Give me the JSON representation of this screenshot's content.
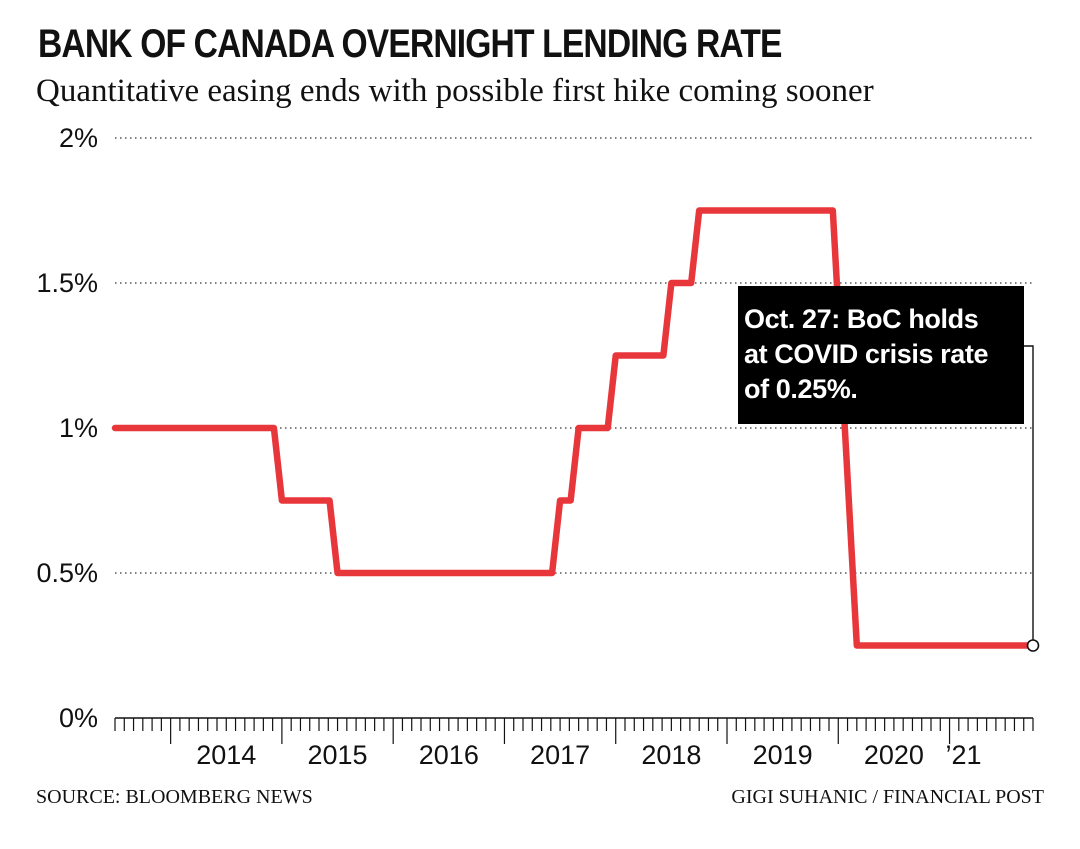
{
  "title": "BANK OF CANADA OVERNIGHT LENDING RATE",
  "subtitle": "Quantitative easing ends with possible first hike coming sooner",
  "annotation": {
    "lines": [
      "Oct. 27: BoC holds",
      "at COVID crisis rate",
      "of 0.25%."
    ]
  },
  "footer": {
    "source": "SOURCE: BLOOMBERG NEWS",
    "credit": "GIGI SUHANIC / FINANCIAL POST"
  },
  "colors": {
    "line": "#e8373b",
    "grid": "#555555",
    "text": "#111111",
    "callout_bg": "#000000"
  },
  "chart_data": {
    "type": "line",
    "title": "BANK OF CANADA OVERNIGHT LENDING RATE",
    "subtitle": "Quantitative easing ends with possible first hike coming sooner",
    "xlabel": "",
    "ylabel": "",
    "ylim": [
      0,
      2
    ],
    "y_ticks": [
      {
        "value": 0,
        "label": "0%"
      },
      {
        "value": 0.5,
        "label": "0.5%"
      },
      {
        "value": 1,
        "label": "1%"
      },
      {
        "value": 1.5,
        "label": "1.5%"
      },
      {
        "value": 2,
        "label": "2%"
      }
    ],
    "xlim": [
      "2013-07",
      "2021-10"
    ],
    "x_ticks": [
      {
        "value": "2014",
        "label": "2014"
      },
      {
        "value": "2015",
        "label": "2015"
      },
      {
        "value": "2016",
        "label": "2016"
      },
      {
        "value": "2017",
        "label": "2017"
      },
      {
        "value": "2018",
        "label": "2018"
      },
      {
        "value": "2019",
        "label": "2019"
      },
      {
        "value": "2020",
        "label": "2020"
      },
      {
        "value": "2021",
        "label": "’21"
      }
    ],
    "grid": "horizontal dotted",
    "series": [
      {
        "step": true,
        "points": [
          {
            "x": "2013-07",
            "y": 1.0
          },
          {
            "x": "2015-01",
            "y": 0.75
          },
          {
            "x": "2015-07",
            "y": 0.5
          },
          {
            "x": "2017-07",
            "y": 0.75
          },
          {
            "x": "2017-09",
            "y": 1.0
          },
          {
            "x": "2018-01",
            "y": 1.25
          },
          {
            "x": "2018-07",
            "y": 1.5
          },
          {
            "x": "2018-10",
            "y": 1.75
          },
          {
            "x": "2020-03",
            "y": 0.25
          },
          {
            "x": "2021-10",
            "y": 0.25
          }
        ]
      }
    ]
  }
}
